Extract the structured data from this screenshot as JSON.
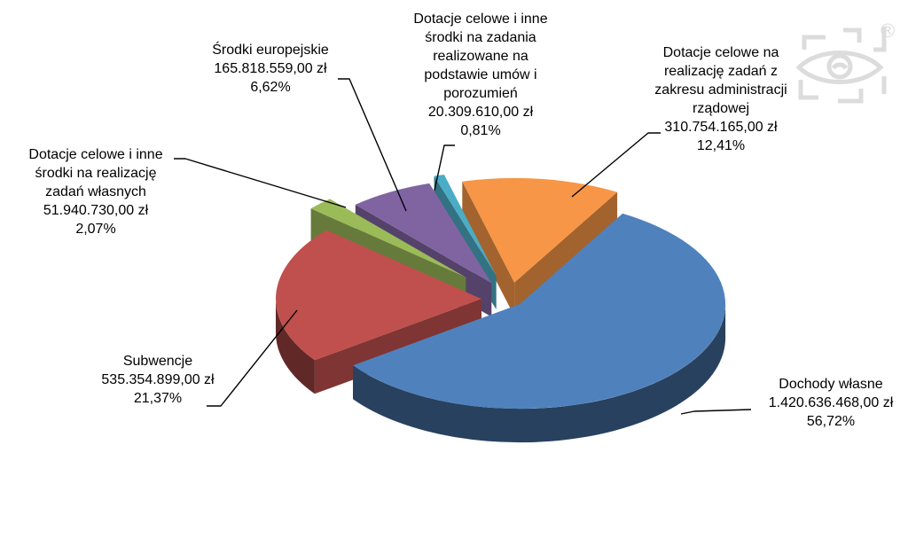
{
  "chart_data": {
    "type": "pie",
    "style": "3d-exploded",
    "title": "",
    "unit": "zł",
    "legend_position": "none",
    "label_style": "callouts-with-leader-lines",
    "background": "#FFFFFF",
    "slices": [
      {
        "name": "Dochody własne",
        "value": 1420636468.0,
        "value_formatted": "1.420.636.468,00 zł",
        "percent": 56.72,
        "percent_formatted": "56,72%",
        "color": "#4F81BD",
        "callout": "Dochody własne\n1.420.636.468,00 zł\n56,72%"
      },
      {
        "name": "Subwencje",
        "value": 535354899.0,
        "value_formatted": "535.354.899,00 zł",
        "percent": 21.37,
        "percent_formatted": "21,37%",
        "color": "#C0504D",
        "callout": "Subwencje\n535.354.899,00 zł\n21,37%"
      },
      {
        "name": "Dotacje celowe i inne środki na realizację zadań własnych",
        "value": 51940730.0,
        "value_formatted": "51.940.730,00 zł",
        "percent": 2.07,
        "percent_formatted": "2,07%",
        "color": "#9BBB59",
        "callout": "Dotacje celowe i inne\nśrodki na realizację\nzadań własnych\n51.940.730,00 zł\n2,07%"
      },
      {
        "name": "Środki europejskie",
        "value": 165818559.0,
        "value_formatted": "165.818.559,00 zł",
        "percent": 6.62,
        "percent_formatted": "6,62%",
        "color": "#8064A2",
        "callout": "Środki europejskie\n165.818.559,00 zł\n6,62%"
      },
      {
        "name": "Dotacje celowe i inne środki na zadania realizowane na podstawie umów i porozumień",
        "value": 20309610.0,
        "value_formatted": "20.309.610,00 zł",
        "percent": 0.81,
        "percent_formatted": "0,81%",
        "color": "#4BACC6",
        "callout": "Dotacje celowe i inne\nśrodki na zadania\nrealizowane na\npodstawie umów i\nporozumień\n20.309.610,00 zł\n0,81%"
      },
      {
        "name": "Dotacje celowe na realizację zadań z zakresu administracji rządowej",
        "value": 310754165.0,
        "value_formatted": "310.754.165,00 zł",
        "percent": 12.41,
        "percent_formatted": "12,41%",
        "color": "#F79646",
        "callout": "Dotacje celowe na\nrealizację zadań z\nzakresu administracji\nrządowej\n310.754.165,00 zł\n12,41%"
      }
    ]
  },
  "watermark": {
    "registered_mark": "®",
    "color": "#DCDCDC"
  }
}
